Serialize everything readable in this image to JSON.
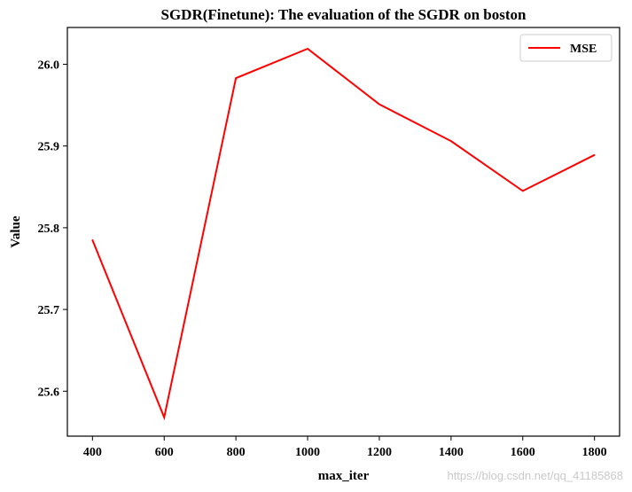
{
  "chart_data": {
    "type": "line",
    "title": "SGDR(Finetune): The evaluation of the SGDR on boston",
    "xlabel": "max_iter",
    "ylabel": "Value",
    "x": [
      400,
      600,
      800,
      1000,
      1200,
      1400,
      1600,
      1800
    ],
    "xticks": [
      400,
      600,
      800,
      1000,
      1200,
      1400,
      1600,
      1800
    ],
    "yticks": [
      25.6,
      25.7,
      25.8,
      25.9,
      26.0
    ],
    "ytick_labels": [
      "25.6",
      "25.7",
      "25.8",
      "25.9",
      "26.0"
    ],
    "xlim": [
      330,
      1870
    ],
    "ylim": [
      25.545,
      26.045
    ],
    "series": [
      {
        "name": "MSE",
        "color": "#ff0000",
        "values": [
          25.785,
          25.568,
          25.983,
          26.019,
          25.951,
          25.906,
          25.845,
          25.889
        ]
      }
    ],
    "legend": "top-right",
    "grid": false
  },
  "watermark": "https://blog.csdn.net/qq_41185868"
}
